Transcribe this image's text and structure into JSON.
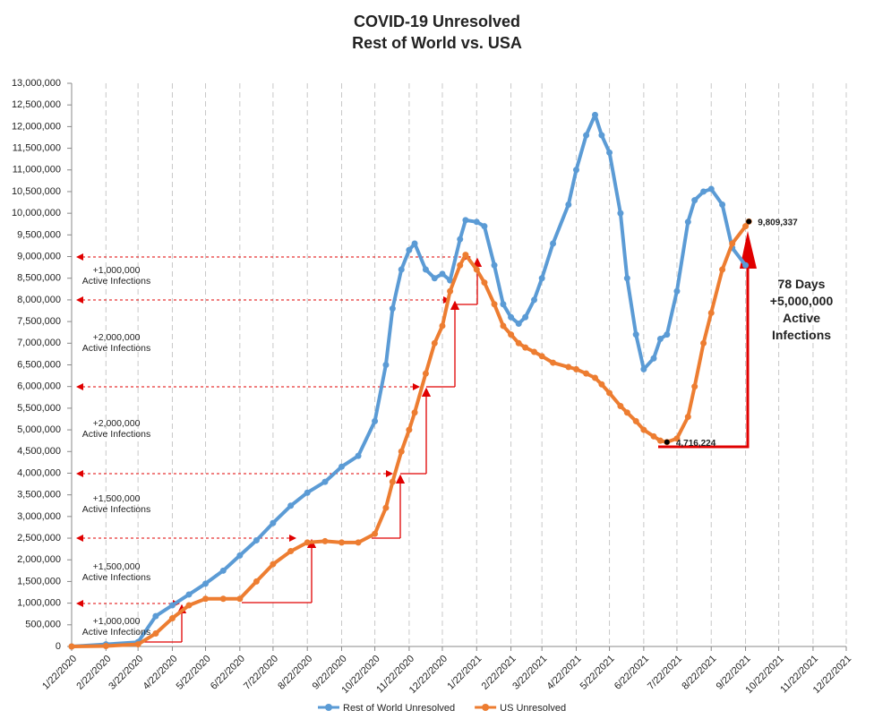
{
  "chart_data": {
    "type": "line",
    "title": "COVID-19 Unresolved",
    "subtitle": "Rest of World vs. USA",
    "xlim": [
      "1/22/2020",
      "12/22/2021"
    ],
    "xticks": [
      "1/22/2020",
      "2/22/2020",
      "3/22/2020",
      "4/22/2020",
      "5/22/2020",
      "6/22/2020",
      "7/22/2020",
      "8/22/2020",
      "9/22/2020",
      "10/22/2020",
      "11/22/2020",
      "12/22/2020",
      "1/22/2021",
      "2/22/2021",
      "3/22/2021",
      "4/22/2021",
      "5/22/2021",
      "6/22/2021",
      "7/22/2021",
      "8/22/2021",
      "9/22/2021",
      "10/22/2021",
      "11/22/2021",
      "12/22/2021"
    ],
    "ylim": [
      0,
      13000000
    ],
    "yticks": [
      0,
      {
        "value": 500000,
        "label": "500,000"
      },
      {
        "value": 1000000,
        "label": "1,000,000"
      },
      {
        "value": 1500000,
        "label": "1,500,000"
      },
      {
        "value": 2000000,
        "label": "2,000,000"
      },
      {
        "value": 2500000,
        "label": "2,500,000"
      },
      {
        "value": 3000000,
        "label": "3,000,000"
      },
      {
        "value": 3500000,
        "label": "3,500,000"
      },
      {
        "value": 4000000,
        "label": "4,000,000"
      },
      {
        "value": 4500000,
        "label": "4,500,000"
      },
      {
        "value": 5000000,
        "label": "5,000,000"
      },
      {
        "value": 5500000,
        "label": "5,500,000"
      },
      {
        "value": 6000000,
        "label": "6,000,000"
      },
      {
        "value": 6500000,
        "label": "6,500,000"
      },
      {
        "value": 7000000,
        "label": "7,000,000"
      },
      {
        "value": 7500000,
        "label": "7,500,000"
      },
      {
        "value": 8000000,
        "label": "8,000,000"
      },
      {
        "value": 8500000,
        "label": "8,500,000"
      },
      {
        "value": 9000000,
        "label": "9,000,000"
      },
      {
        "value": 9500000,
        "label": "9,500,000"
      },
      {
        "value": 10000000,
        "label": "10,000,000"
      },
      {
        "value": 10500000,
        "label": "10,500,000"
      },
      {
        "value": 11000000,
        "label": "11,000,000"
      },
      {
        "value": 11500000,
        "label": "11,500,000"
      },
      {
        "value": 12000000,
        "label": "12,000,000"
      },
      {
        "value": 12500000,
        "label": "12,500,000"
      },
      {
        "value": 13000000,
        "label": "13,000,000"
      }
    ],
    "grid": "x",
    "legend": "bottom",
    "x": [
      "1/22/2020",
      "2/22/2020",
      "3/22/2020",
      "4/7/2020",
      "4/22/2020",
      "5/7/2020",
      "5/22/2020",
      "6/7/2020",
      "6/22/2020",
      "7/7/2020",
      "7/22/2020",
      "8/7/2020",
      "8/22/2020",
      "9/7/2020",
      "9/22/2020",
      "10/7/2020",
      "10/22/2020",
      "11/1/2020",
      "11/7/2020",
      "11/15/2020",
      "11/22/2020",
      "11/27/2020",
      "12/7/2020",
      "12/15/2020",
      "12/22/2020",
      "12/29/2020",
      "1/7/2021",
      "1/12/2021",
      "1/22/2021",
      "1/29/2021",
      "2/7/2021",
      "2/15/2021",
      "2/22/2021",
      "3/1/2021",
      "3/7/2021",
      "3/15/2021",
      "3/22/2021",
      "4/1/2021",
      "4/15/2021",
      "4/22/2021",
      "5/1/2021",
      "5/9/2021",
      "5/15/2021",
      "5/22/2021",
      "6/1/2021",
      "6/7/2021",
      "6/15/2021",
      "6/22/2021",
      "7/1/2021",
      "7/7/2021",
      "7/13/2021",
      "7/22/2021",
      "8/1/2021",
      "8/7/2021",
      "8/15/2021",
      "8/22/2021",
      "9/1/2021",
      "9/10/2021",
      "9/22/2021",
      "9/25/2021"
    ],
    "series": [
      {
        "name": "Rest of World Unresolved",
        "color": "#5b9bd5",
        "values": [
          0,
          50000,
          100000,
          700000,
          950000,
          1200000,
          1450000,
          1750000,
          2100000,
          2450000,
          2850000,
          3250000,
          3550000,
          3800000,
          4150000,
          4400000,
          5200000,
          6500000,
          7800000,
          8700000,
          9150000,
          9300000,
          8700000,
          8500000,
          8600000,
          8450000,
          9400000,
          9840000,
          9800000,
          9700000,
          8800000,
          7900000,
          7600000,
          7450000,
          7600000,
          8000000,
          8500000,
          9300000,
          10200000,
          11000000,
          11800000,
          12270000,
          11800000,
          11400000,
          10000000,
          8500000,
          7200000,
          6400000,
          6650000,
          7100000,
          7200000,
          8200000,
          9800000,
          10300000,
          10500000,
          10560000,
          10200000,
          9200000,
          8800000,
          null
        ]
      },
      {
        "name": "US Unresolved",
        "color": "#ed7d31",
        "values": [
          0,
          10000,
          50000,
          300000,
          650000,
          950000,
          1100000,
          1100000,
          1100000,
          1500000,
          1900000,
          2200000,
          2400000,
          2430000,
          2400000,
          2400000,
          2600000,
          3200000,
          3800000,
          4500000,
          5000000,
          5400000,
          6300000,
          7000000,
          7400000,
          8200000,
          8800000,
          9040000,
          8700000,
          8400000,
          7900000,
          7400000,
          7200000,
          7000000,
          6900000,
          6800000,
          6700000,
          6550000,
          6450000,
          6400000,
          6300000,
          6200000,
          6050000,
          5850000,
          5550000,
          5400000,
          5200000,
          5000000,
          4850000,
          4750000,
          4716224,
          4800000,
          5300000,
          6000000,
          7000000,
          7700000,
          8700000,
          9300000,
          9700000,
          9809337
        ],
        "value_labels": [
          null,
          null,
          null,
          null,
          null,
          null,
          null,
          null,
          null,
          null,
          null,
          null,
          null,
          null,
          null,
          null,
          null,
          null,
          null,
          null,
          null,
          null,
          null,
          null,
          null,
          null,
          null,
          null,
          null,
          null,
          null,
          null,
          null,
          null,
          null,
          null,
          null,
          null,
          null,
          null,
          null,
          null,
          null,
          null,
          null,
          null,
          null,
          null,
          null,
          null,
          "4,716,224",
          null,
          null,
          null,
          null,
          null,
          null,
          null,
          null,
          "9,809,337"
        ]
      }
    ],
    "annotations": [
      [
        "+1,000,000",
        "Active Infections"
      ],
      [
        "+2,000,000",
        "Active Infections"
      ],
      [
        "+2,000,000",
        "Active Infections"
      ],
      [
        "+1,500,000",
        "Active Infections"
      ],
      [
        "+1,500,000",
        "Active Infections"
      ],
      [
        "+1,000,000",
        "Active Infections"
      ]
    ],
    "callout": [
      "78 Days",
      "+5,000,000",
      "Active",
      "Infections"
    ]
  }
}
